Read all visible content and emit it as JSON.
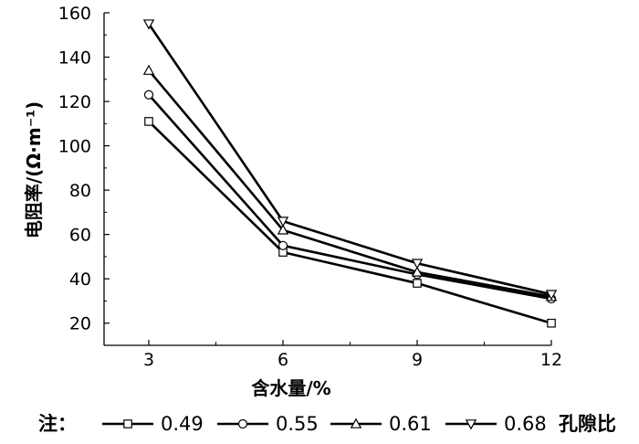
{
  "chart_data": {
    "type": "line",
    "xlabel": "含水量/%",
    "ylabel": "电阻率/(Ω·m⁻¹)",
    "x": [
      3,
      6,
      9,
      12
    ],
    "x_ticks": [
      "3",
      "6",
      "9",
      "12"
    ],
    "xlim": [
      2,
      12
    ],
    "ylim": [
      10,
      160
    ],
    "y_ticks": [
      "20",
      "40",
      "60",
      "80",
      "100",
      "120",
      "140",
      "160"
    ],
    "grid": false,
    "series": [
      {
        "name": "0.49",
        "marker": "square",
        "values": [
          111,
          52,
          38,
          20
        ]
      },
      {
        "name": "0.55",
        "marker": "circle",
        "values": [
          123,
          55,
          42,
          31
        ]
      },
      {
        "name": "0.61",
        "marker": "triangle-up",
        "values": [
          134,
          62,
          43,
          32
        ]
      },
      {
        "name": "0.68",
        "marker": "triangle-down",
        "values": [
          155,
          66,
          47,
          33
        ]
      }
    ],
    "legend": {
      "position": "bottom",
      "prefix": "注：",
      "suffix": "孔隙比"
    },
    "colors": {
      "line": "#000000",
      "marker_fill": "#ffffff"
    }
  }
}
